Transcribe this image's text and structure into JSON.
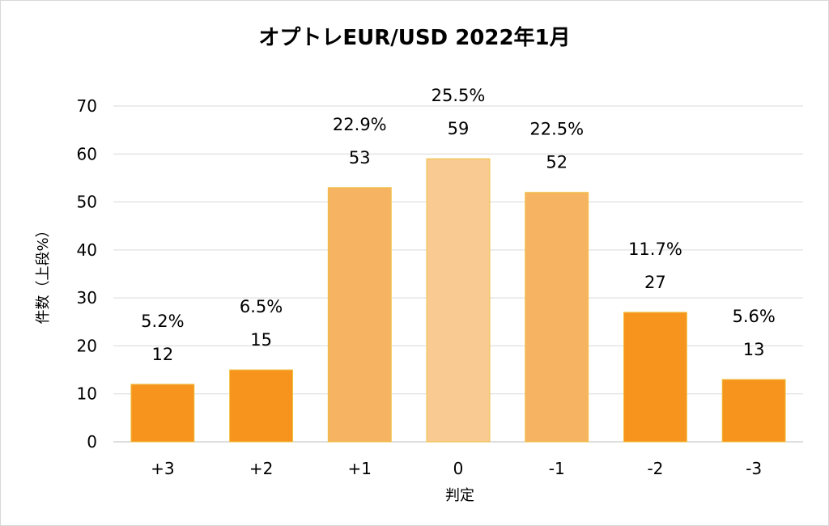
{
  "chart_data": {
    "type": "bar",
    "title": "オプトレEUR/USD 2022年1月",
    "xlabel": "判定",
    "ylabel": "件数（上段%）",
    "categories": [
      "+3",
      "+2",
      "+1",
      "0",
      "-1",
      "-2",
      "-3"
    ],
    "values": [
      12,
      15,
      53,
      59,
      52,
      27,
      13
    ],
    "percent_labels": [
      "5.2%",
      "6.5%",
      "22.9%",
      "25.5%",
      "22.5%",
      "11.7%",
      "5.6%"
    ],
    "bar_colors": [
      "#f7941d",
      "#f7941d",
      "#f6b462",
      "#f9cb92",
      "#f6b462",
      "#f7941d",
      "#f7941d"
    ],
    "ylim": [
      0,
      70
    ],
    "yticks": [
      0,
      10,
      20,
      30,
      40,
      50,
      60,
      70
    ],
    "grid": true,
    "legend": "none"
  }
}
